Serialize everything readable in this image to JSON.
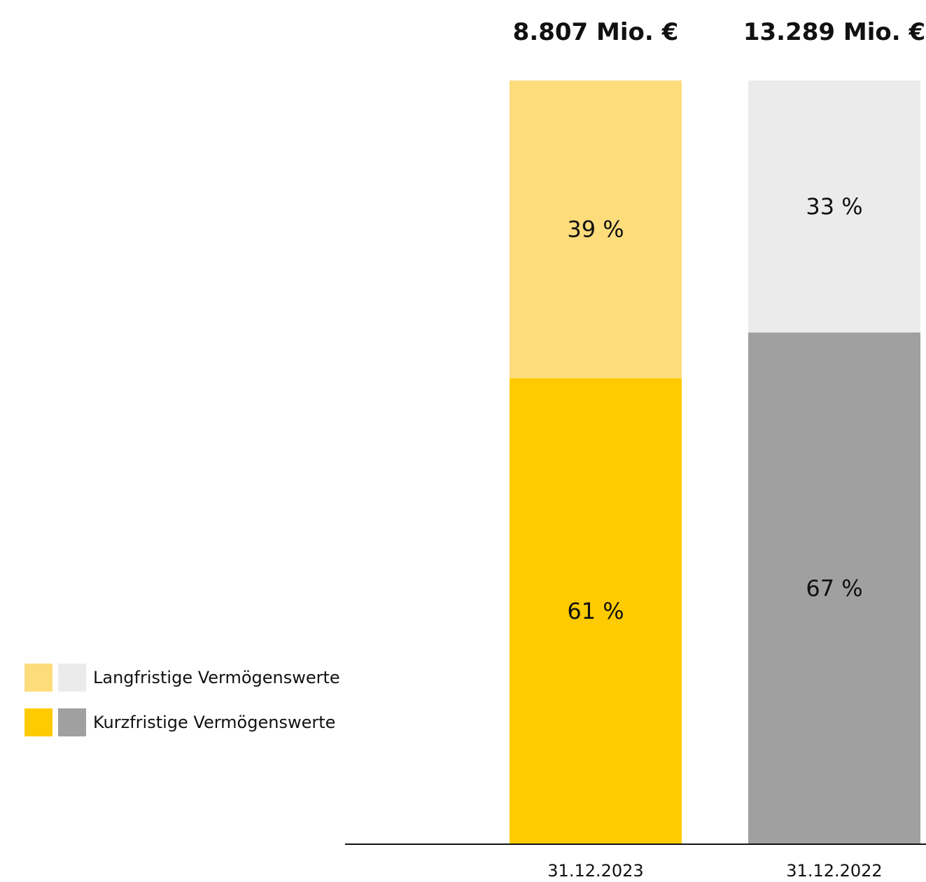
{
  "chart_data": {
    "type": "bar",
    "stacked": true,
    "normalized": true,
    "categories": [
      "31.12.2023",
      "31.12.2022"
    ],
    "totals": [
      "8.807 Mio. €",
      "13.289 Mio. €"
    ],
    "series": [
      {
        "name": "Kurzfristige Vermögenswerte",
        "values": [
          61,
          67
        ],
        "labels": [
          "61 %",
          "67 %"
        ],
        "colors": [
          "#FDCB00",
          "#A0A0A0"
        ]
      },
      {
        "name": "Langfristige Vermögenswerte",
        "values": [
          39,
          33
        ],
        "labels": [
          "39 %",
          "33 %"
        ],
        "colors": [
          "#FDDC7C",
          "#EBEBEB"
        ]
      }
    ],
    "ylim": [
      0,
      100
    ],
    "grid": false,
    "legend_position": "bottom-left"
  },
  "legend": [
    {
      "label": "Langfristige Vermögenswerte",
      "colors": [
        "#FDDC7C",
        "#EBEBEB"
      ]
    },
    {
      "label": "Kurzfristige Vermögenswerte",
      "colors": [
        "#FDCB00",
        "#A0A0A0"
      ]
    }
  ]
}
